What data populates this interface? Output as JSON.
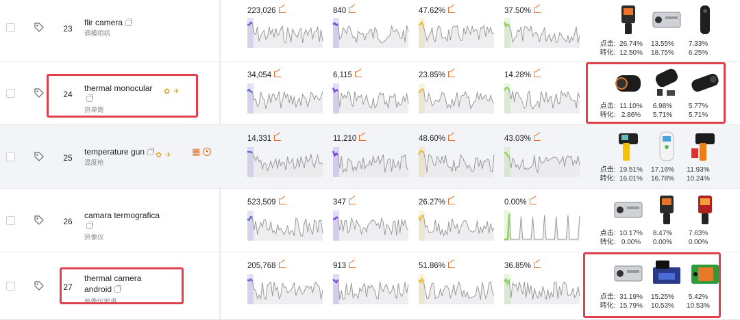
{
  "colors": {
    "accent": "#f06a1e",
    "highlight": "#e0404d",
    "spark_line": "#999999",
    "spark_fill": "#e7e7ea"
  },
  "labels": {
    "click": "点击:",
    "convert": "转化:"
  },
  "rows": [
    {
      "rank": "23",
      "keyword": "flir camera",
      "keyword_line2": "",
      "sub": "调模相机",
      "badges": false,
      "extra_icons": false,
      "shaded": false,
      "metrics": [
        {
          "value": "223,026",
          "color": "#6a6ad8"
        },
        {
          "value": "840",
          "color": "#7a4ddb"
        },
        {
          "value": "47.62%",
          "color": "#e6c24a"
        },
        {
          "value": "37.50%",
          "color": "#8fd35e"
        }
      ],
      "click": [
        "26.74%",
        "13.55%",
        "7.33%"
      ],
      "convert": [
        "12.50%",
        "18.75%",
        "6.25%"
      ],
      "products": [
        "handheld-thermal-camera",
        "phone-thermal-attachment",
        "thermal-monocular-cylinder"
      ]
    },
    {
      "rank": "24",
      "keyword": "thermal monocular",
      "keyword_line2": "",
      "sub": "热单筒",
      "badges": true,
      "extra_icons": false,
      "shaded": false,
      "metrics": [
        {
          "value": "34,054",
          "color": "#6a6ad8"
        },
        {
          "value": "6,115",
          "color": "#7a4ddb"
        },
        {
          "value": "23.85%",
          "color": "#e6c24a"
        },
        {
          "value": "14.28%",
          "color": "#8fd35e"
        }
      ],
      "click": [
        "11.10%",
        "6.98%",
        "5.77%"
      ],
      "convert": [
        "2.86%",
        "5.71%",
        "5.71%"
      ],
      "products": [
        "thermal-monocular-black",
        "thermal-monocular-kit",
        "thermal-monocular-long"
      ]
    },
    {
      "rank": "25",
      "keyword": "temperature gun",
      "keyword_line2": "",
      "sub": "温度枪",
      "badges": true,
      "extra_icons": true,
      "shaded": true,
      "metrics": [
        {
          "value": "14,331",
          "color": "#6a6ad8"
        },
        {
          "value": "11,210",
          "color": "#7a4ddb"
        },
        {
          "value": "48.60%",
          "color": "#e6c24a"
        },
        {
          "value": "43.03%",
          "color": "#8fd35e"
        }
      ],
      "click": [
        "19.51%",
        "17.16%",
        "11.93%"
      ],
      "convert": [
        "16.01%",
        "16.78%",
        "10.24%"
      ],
      "products": [
        "infrared-thermometer-yellow",
        "forehead-thermometer",
        "infrared-thermometer-orange"
      ]
    },
    {
      "rank": "26",
      "keyword": "camara termografica",
      "keyword_line2": "",
      "sub": "热像仪",
      "badges": false,
      "extra_icons": false,
      "shaded": false,
      "metrics": [
        {
          "value": "523,509",
          "color": "#6a6ad8"
        },
        {
          "value": "347",
          "color": "#7a4ddb"
        },
        {
          "value": "26.27%",
          "color": "#e6c24a"
        },
        {
          "value": "0.00%",
          "color": "#8fd35e"
        }
      ],
      "click": [
        "10.17%",
        "8.47%",
        "7.63%"
      ],
      "convert": [
        "0.00%",
        "0.00%",
        "0.00%"
      ],
      "products": [
        "phone-thermal-attachment",
        "handheld-thermal-camera",
        "handheld-thermal-camera-red"
      ]
    },
    {
      "rank": "27",
      "keyword": "thermal camera",
      "keyword_line2": "android",
      "sub": "热像仪安卓",
      "badges": false,
      "extra_icons": false,
      "shaded": false,
      "metrics": [
        {
          "value": "205,768",
          "color": "#6a6ad8"
        },
        {
          "value": "913",
          "color": "#7a4ddb"
        },
        {
          "value": "51.86%",
          "color": "#e6c24a"
        },
        {
          "value": "36.85%",
          "color": "#8fd35e"
        }
      ],
      "click": [
        "31.19%",
        "15.25%",
        "5.42%"
      ],
      "convert": [
        "15.79%",
        "10.53%",
        "10.53%"
      ],
      "products": [
        "phone-thermal-attachment",
        "usb-thermal-camera-kit",
        "green-thermal-attachment"
      ]
    }
  ]
}
